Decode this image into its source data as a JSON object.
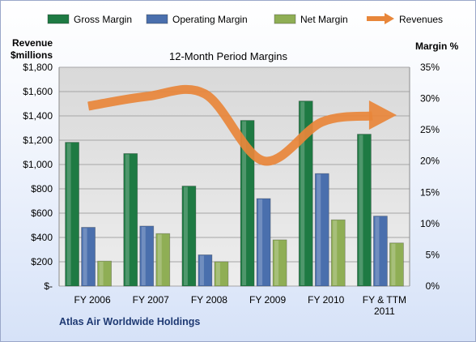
{
  "chart_data": {
    "type": "bar",
    "title": "12-Month Period Margins",
    "company": "Atlas Air Worldwide Holdings",
    "categories": [
      [
        "FY 2006"
      ],
      [
        "FY 2007"
      ],
      [
        "FY 2008"
      ],
      [
        "FY 2009"
      ],
      [
        "FY 2010"
      ],
      [
        "FY & TTM",
        "2011"
      ]
    ],
    "left_axis": {
      "title_line1": "Revenue",
      "title_line2": "$millions",
      "range": [
        0,
        1800
      ],
      "ticks": [
        0,
        200,
        400,
        600,
        800,
        1000,
        1200,
        1400,
        1600,
        1800
      ],
      "tick_labels": [
        "$-",
        "$200",
        "$400",
        "$600",
        "$800",
        "$1,000",
        "$1,200",
        "$1,400",
        "$1,600",
        "$1,800"
      ]
    },
    "right_axis": {
      "title": "Margin %",
      "range": [
        0,
        35
      ],
      "ticks": [
        0,
        5,
        10,
        15,
        20,
        25,
        30,
        35
      ],
      "tick_labels": [
        "0%",
        "5%",
        "10%",
        "15%",
        "20%",
        "25%",
        "30%",
        "35%"
      ]
    },
    "bar_series": [
      {
        "name": "Gross Margin",
        "color": "#1e7a43",
        "values": [
          23.0,
          21.2,
          16.0,
          26.5,
          29.6,
          24.3
        ]
      },
      {
        "name": "Operating Margin",
        "color": "#4a6fad",
        "values": [
          9.4,
          9.6,
          5.0,
          14.0,
          18.0,
          11.2
        ]
      },
      {
        "name": "Net Margin",
        "color": "#8fae55",
        "values": [
          4.0,
          8.4,
          3.9,
          7.4,
          10.6,
          6.9
        ]
      }
    ],
    "line_series": {
      "name": "Revenues",
      "color": "#e8863a",
      "axis": "left",
      "values": [
        1480,
        1560,
        1580,
        1030,
        1350,
        1400
      ]
    },
    "legend_position": "top",
    "grid": true
  }
}
